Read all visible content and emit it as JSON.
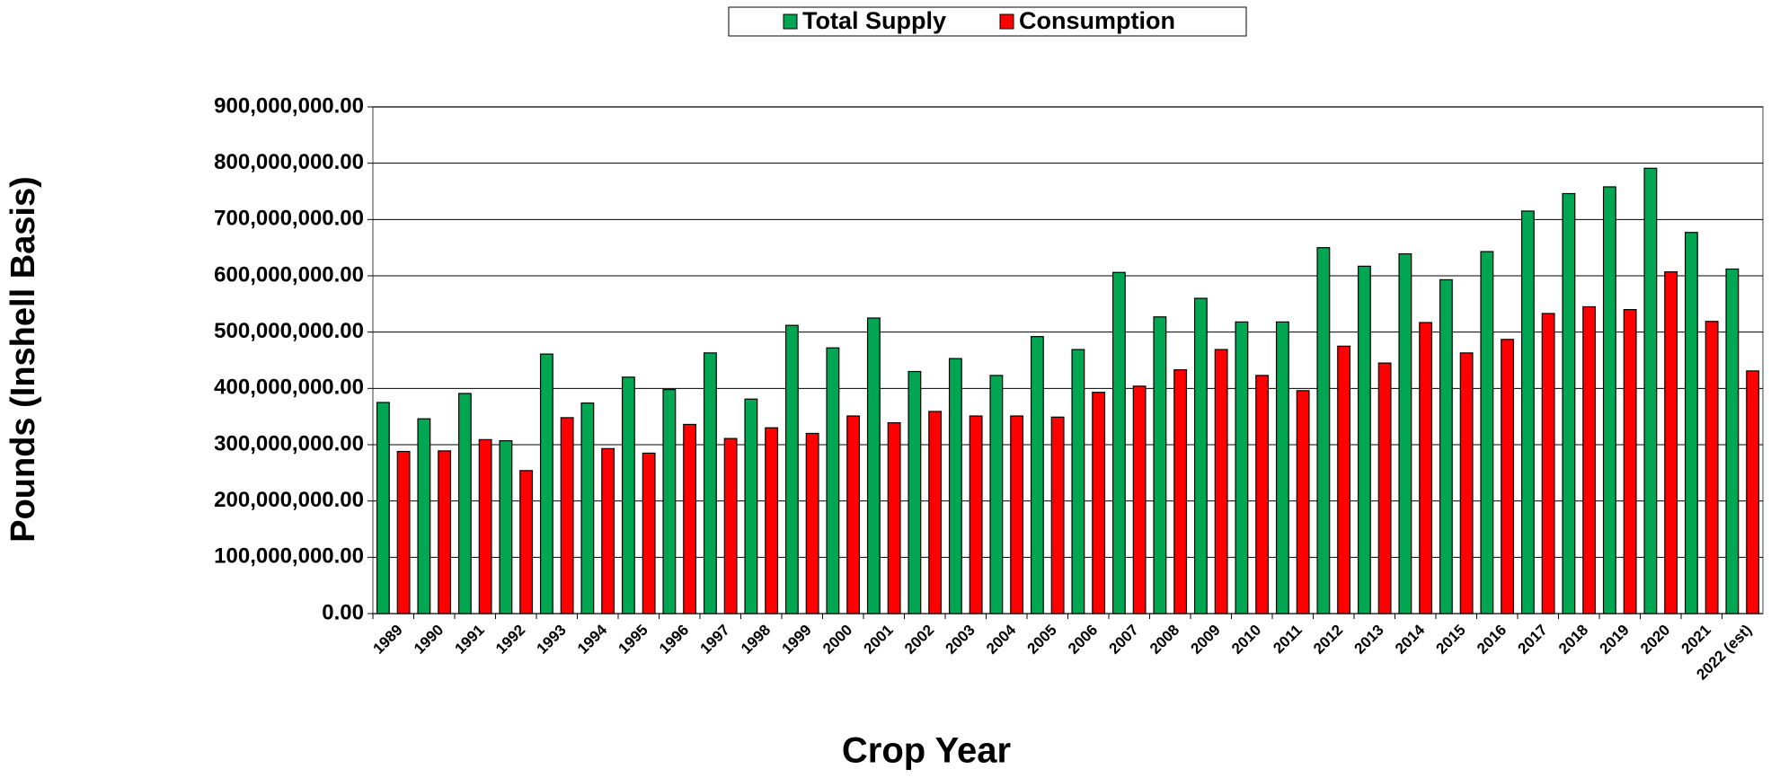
{
  "chart_data": {
    "type": "bar",
    "x_label": "Crop Year",
    "y_label": "Pounds (Inshell Basis)",
    "categories": [
      "1989",
      "1990",
      "1991",
      "1992",
      "1993",
      "1994",
      "1995",
      "1996",
      "1997",
      "1998",
      "1999",
      "2000",
      "2001",
      "2002",
      "2003",
      "2004",
      "2005",
      "2006",
      "2007",
      "2008",
      "2009",
      "2010",
      "2011",
      "2012",
      "2013",
      "2014",
      "2015",
      "2016",
      "2017",
      "2018",
      "2019",
      "2020",
      "2021",
      "2022 (est)"
    ],
    "series": [
      {
        "name": "Total Supply",
        "color": "#00a651",
        "values": [
          375000000,
          346000000,
          391000000,
          307000000,
          461000000,
          374000000,
          420000000,
          398000000,
          463000000,
          381000000,
          512000000,
          472000000,
          525000000,
          430000000,
          453000000,
          423000000,
          492000000,
          469000000,
          606000000,
          527000000,
          560000000,
          518000000,
          518000000,
          650000000,
          617000000,
          639000000,
          593000000,
          643000000,
          715000000,
          746000000,
          758000000,
          791000000,
          677000000,
          612000000
        ]
      },
      {
        "name": "Consumption",
        "color": "#ff0000",
        "values": [
          288000000,
          289000000,
          309000000,
          254000000,
          348000000,
          293000000,
          285000000,
          336000000,
          311000000,
          330000000,
          320000000,
          351000000,
          339000000,
          359000000,
          351000000,
          351000000,
          349000000,
          393000000,
          404000000,
          433000000,
          469000000,
          423000000,
          396000000,
          475000000,
          445000000,
          517000000,
          463000000,
          487000000,
          533000000,
          545000000,
          540000000,
          607000000,
          519000000,
          431000000
        ]
      }
    ],
    "ylim": [
      0,
      900000000
    ],
    "yticks": [
      {
        "value": 0,
        "label": "0.00"
      },
      {
        "value": 100000000,
        "label": "100,000,000.00"
      },
      {
        "value": 200000000,
        "label": "200,000,000.00"
      },
      {
        "value": 300000000,
        "label": "300,000,000.00"
      },
      {
        "value": 400000000,
        "label": "400,000,000.00"
      },
      {
        "value": 500000000,
        "label": "500,000,000.00"
      },
      {
        "value": 600000000,
        "label": "600,000,000.00"
      },
      {
        "value": 700000000,
        "label": "700,000,000.00"
      },
      {
        "value": 800000000,
        "label": "800,000,000.00"
      },
      {
        "value": 900000000,
        "label": "900,000,000.00"
      }
    ],
    "grid": true,
    "legend": "top"
  }
}
